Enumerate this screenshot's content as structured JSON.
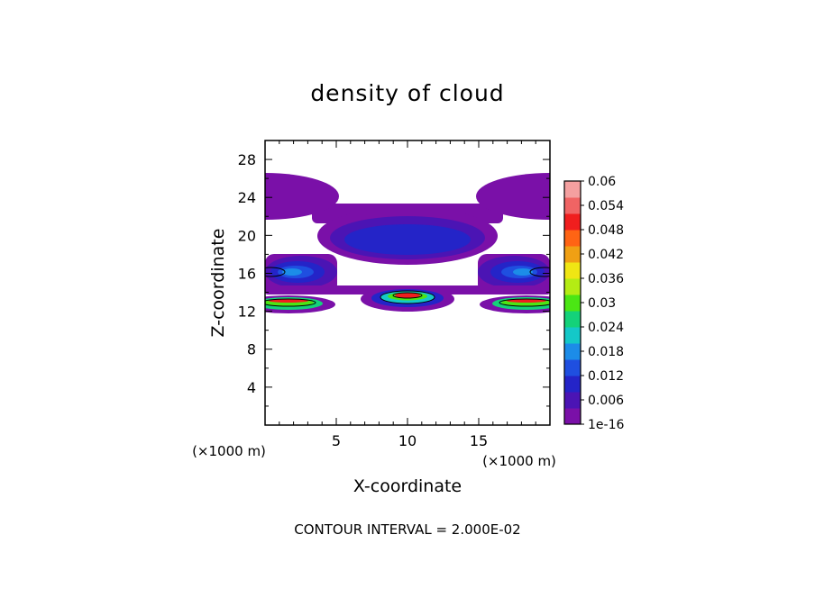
{
  "chart_data": {
    "type": "heatmap",
    "title": "density of cloud",
    "xlabel": "X-coordinate",
    "ylabel": "Z-coordinate",
    "x_unit_label": "(×1000 m)",
    "z_unit_label": "(×1000 m)",
    "xlim": [
      0,
      20
    ],
    "ylim": [
      0,
      30
    ],
    "x_ticks": [
      5,
      10,
      15
    ],
    "y_ticks": [
      4,
      8,
      12,
      16,
      20,
      24,
      28
    ],
    "footer": "CONTOUR INTERVAL = 2.000E-02",
    "colorbar": {
      "labels": [
        "0.06",
        "0.054",
        "0.048",
        "0.042",
        "0.036",
        "0.03",
        "0.024",
        "0.018",
        "0.012",
        "0.006",
        "1e-16"
      ],
      "colors": [
        "#7a10a8",
        "#4b14b4",
        "#2424c8",
        "#1f4fe0",
        "#1c8ce8",
        "#14c8c8",
        "#14d27a",
        "#4be614",
        "#b4ec14",
        "#f0e614",
        "#f0a014",
        "#ff6414",
        "#f01e1e",
        "#f06464",
        "#f4a0a0"
      ]
    },
    "regions": [
      {
        "name": "upper cloud band",
        "x": [
          3,
          17
        ],
        "z": [
          17.5,
          23.5
        ],
        "peak": 0.006
      },
      {
        "name": "left edge cloud",
        "x": [
          0,
          5.5
        ],
        "z": [
          14.5,
          26
        ],
        "peak": 0.012
      },
      {
        "name": "right edge cloud",
        "x": [
          14.5,
          20
        ],
        "z": [
          14.5,
          26
        ],
        "peak": 0.012
      },
      {
        "name": "central lower core",
        "x": [
          7,
          12.5
        ],
        "z": [
          12.5,
          14.5
        ],
        "peak": 0.06
      },
      {
        "name": "left lower core",
        "x": [
          0,
          3.5
        ],
        "z": [
          12,
          14
        ],
        "peak": 0.06
      },
      {
        "name": "right lower core",
        "x": [
          15.5,
          20
        ],
        "z": [
          12,
          14
        ],
        "peak": 0.06
      }
    ]
  }
}
